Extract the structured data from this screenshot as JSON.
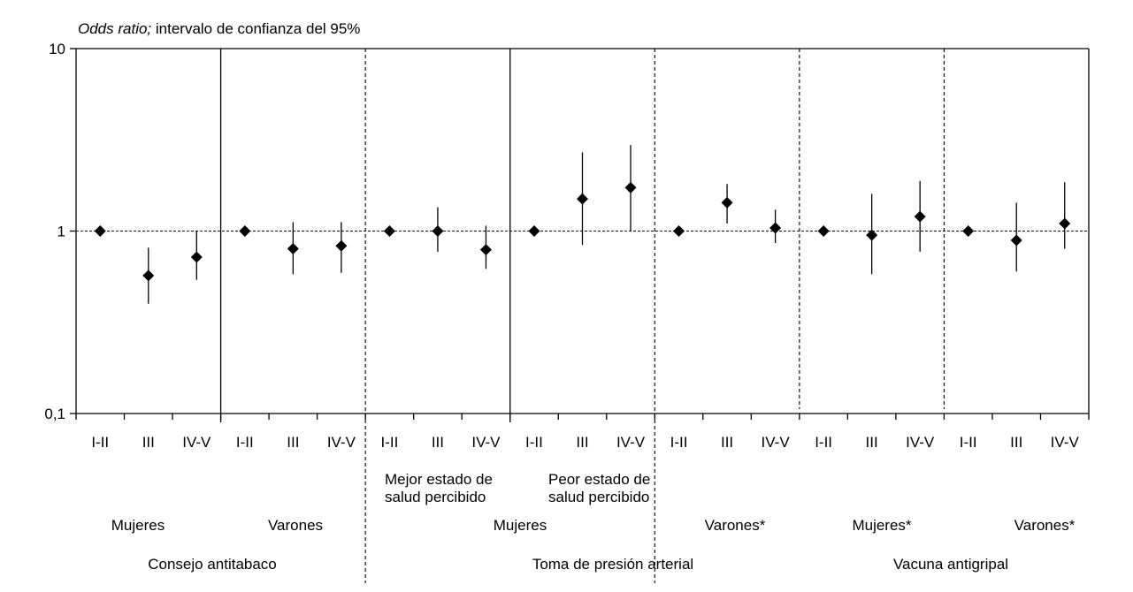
{
  "chart_data": {
    "type": "scatter",
    "ylabel_italic": "Odds ratio;",
    "ylabel_rest": " intervalo de confianza del 95%",
    "y_scale": "log",
    "ylim": [
      0.1,
      10
    ],
    "y_ticks": [
      {
        "value": 10,
        "label": "10"
      },
      {
        "value": 1,
        "label": "1"
      },
      {
        "value": 0.1,
        "label": "0,1"
      }
    ],
    "reference_line": 1,
    "x_ticks": [
      "I-II",
      "III",
      "IV-V",
      "I-II",
      "III",
      "IV-V",
      "I-II",
      "III",
      "IV-V",
      "I-II",
      "III",
      "IV-V",
      "I-II",
      "III",
      "IV-V",
      "I-II",
      "III",
      "IV-V",
      "I-II",
      "III",
      "IV-V"
    ],
    "series": [
      {
        "values": [
          1.0,
          0.57,
          0.72,
          1.0,
          0.8,
          0.83,
          1.0,
          1.0,
          0.79,
          1.0,
          1.5,
          1.73,
          1.0,
          1.43,
          1.04,
          1.0,
          0.95,
          1.2,
          1.0,
          0.89,
          1.1
        ],
        "lower": [
          null,
          0.4,
          0.54,
          null,
          0.58,
          0.59,
          null,
          0.77,
          0.62,
          null,
          0.84,
          1.0,
          null,
          1.1,
          0.86,
          null,
          0.58,
          0.77,
          null,
          0.6,
          0.8
        ],
        "upper": [
          null,
          0.81,
          1.0,
          null,
          1.12,
          1.12,
          null,
          1.35,
          1.07,
          null,
          2.7,
          2.96,
          null,
          1.81,
          1.31,
          null,
          1.6,
          1.88,
          null,
          1.43,
          1.85
        ]
      }
    ],
    "subgroup_labels": [
      "Mejor estado de salud percibido",
      "Peor estado de salud percibido"
    ],
    "sex_labels": [
      "Mujeres",
      "Varones",
      "Mujeres",
      "Varones*",
      "Mujeres*",
      "Varones*"
    ],
    "outcome_labels": [
      "Consejo antitabaco",
      "Toma de presión arterial",
      "Vacuna antigripal"
    ],
    "grid": false,
    "legend": "none",
    "colors": {
      "marker": "#000000",
      "line": "#000000"
    }
  }
}
